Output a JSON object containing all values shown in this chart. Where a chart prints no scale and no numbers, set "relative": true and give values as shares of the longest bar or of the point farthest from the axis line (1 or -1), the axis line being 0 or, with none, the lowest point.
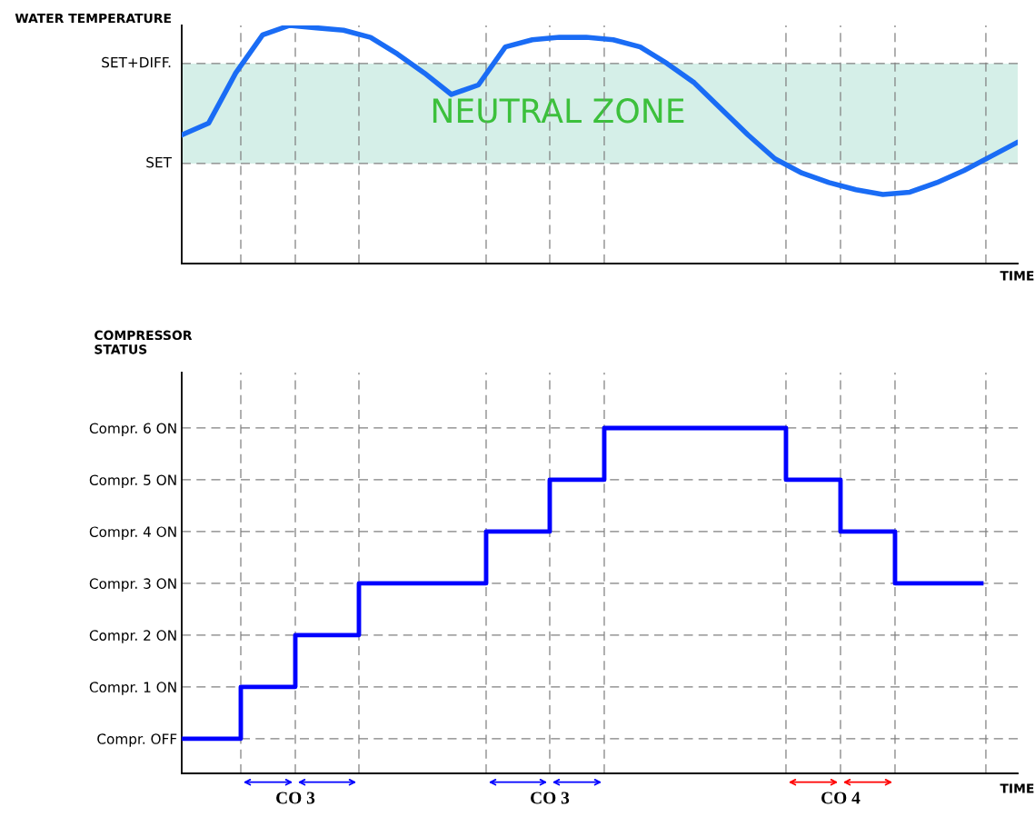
{
  "chart_data": [
    {
      "type": "line",
      "xlabel": "TIME",
      "ylabel": "WATER TEMPERATURE",
      "relative": true,
      "categories": [
        null,
        null,
        null,
        null,
        null,
        null,
        null,
        null,
        null,
        null,
        null,
        null,
        null,
        null,
        null,
        null,
        null,
        null,
        null,
        null,
        null,
        null,
        null,
        null,
        null,
        null,
        null,
        null,
        null,
        null,
        null,
        null
      ],
      "series": [
        {
          "color": "#1a6cf5",
          "values": [
            0.54,
            0.59,
            0.8,
            0.96,
            1,
            0.99,
            0.98,
            0.95,
            0.88,
            0.8,
            0.71,
            0.75,
            0.91,
            0.94,
            0.95,
            0.95,
            0.94,
            0.91,
            0.84,
            0.76,
            0.65,
            0.54,
            0.44,
            0.38,
            0.34,
            0.31,
            0.29,
            0.3,
            0.34,
            0.39,
            0.45,
            0.51
          ]
        }
      ],
      "ref_lines": [
        {
          "axis": "y",
          "value": 0.42,
          "label": "SET"
        },
        {
          "axis": "y",
          "value": 0.84,
          "label": "SET+DIFF."
        }
      ],
      "bands": [
        {
          "axis": "y",
          "from": 0.42,
          "to": 0.84,
          "label": "NEUTRAL ZONE",
          "color": "#d5efe8"
        }
      ],
      "line_style": "solid",
      "tick_labels": false
    },
    {
      "type": "step",
      "xlabel": "TIME",
      "ylabel": "COMPRESSOR\nSTATUS",
      "categories": [
        null,
        null,
        null,
        null,
        null,
        null,
        null,
        null,
        null,
        null,
        null,
        null,
        null,
        null,
        null,
        null,
        null,
        null,
        null,
        null,
        null,
        null,
        null,
        null,
        null,
        null,
        null,
        null,
        null,
        null,
        null,
        null,
        null,
        null,
        null,
        null,
        null,
        null,
        null,
        null,
        null,
        null,
        null,
        null,
        null,
        null,
        null,
        null,
        null,
        null,
        null,
        null,
        null,
        null,
        null,
        null,
        null,
        null,
        null,
        null,
        null,
        null,
        null,
        null,
        null,
        null,
        null,
        null,
        null,
        null,
        null,
        null,
        null,
        null,
        null,
        null,
        null,
        null,
        null,
        null,
        null,
        null,
        null,
        null,
        null,
        null,
        null,
        null,
        null
      ],
      "series": [
        {
          "color": "#0000ff",
          "values": [
            0,
            0,
            0,
            0,
            0,
            0,
            0,
            1,
            1,
            1,
            1,
            1,
            1,
            2,
            2,
            2,
            2,
            2,
            2,
            2,
            3,
            3,
            3,
            3,
            3,
            3,
            3,
            3,
            3,
            3,
            3,
            3,
            3,
            3,
            4,
            4,
            4,
            4,
            4,
            4,
            4,
            5,
            5,
            5,
            5,
            5,
            5,
            6,
            6,
            6,
            6,
            6,
            6,
            6,
            6,
            6,
            6,
            6,
            6,
            6,
            6,
            6,
            6,
            6,
            6,
            6,
            6,
            5,
            5,
            5,
            5,
            5,
            5,
            4,
            4,
            4,
            4,
            4,
            4,
            3,
            3,
            3,
            3,
            3,
            3,
            3,
            3,
            3,
            3
          ]
        }
      ],
      "ylim": [
        -0.67,
        7.07
      ],
      "yticks": [
        {
          "value": 0,
          "label": "Compr. OFF"
        },
        {
          "value": 1,
          "label": "Compr. 1 ON"
        },
        {
          "value": 2,
          "label": "Compr. 2 ON"
        },
        {
          "value": 3,
          "label": "Compr. 3 ON"
        },
        {
          "value": 4,
          "label": "Compr. 4 ON"
        },
        {
          "value": 5,
          "label": "Compr. 5 ON"
        },
        {
          "value": 6,
          "label": "Compr. 6 ON"
        }
      ],
      "annotations": [
        "CO 3",
        "CO 3",
        "CO 4"
      ],
      "grid": true,
      "line_style": "solid",
      "tick_labels": "y"
    }
  ]
}
